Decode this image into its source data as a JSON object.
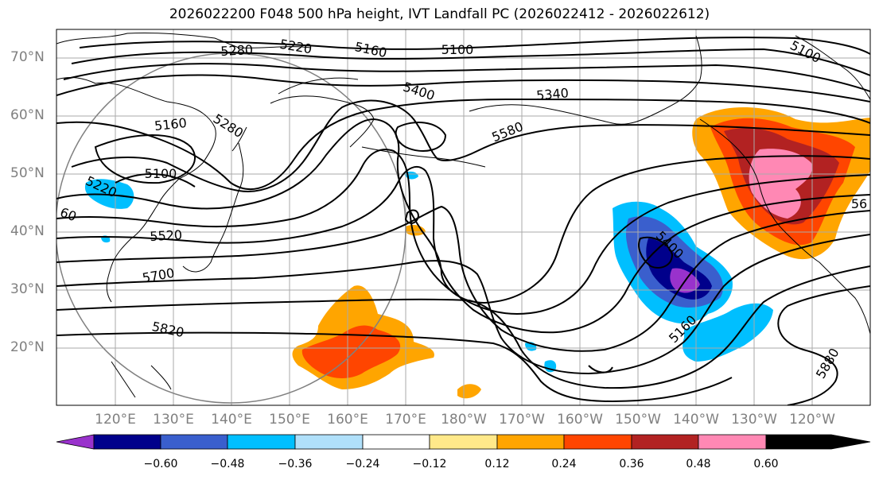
{
  "title": "2026022200 F048 500 hPa height, IVT Landfall PC (2026022412 - 2026022612)",
  "lat_labels": [
    "70°N",
    "60°N",
    "50°N",
    "40°N",
    "30°N",
    "20°N"
  ],
  "lon_labels": [
    "120°E",
    "130°E",
    "140°E",
    "150°E",
    "160°E",
    "170°E",
    "180°W",
    "170°W",
    "160°W",
    "150°W",
    "140°W",
    "130°W",
    "120°W"
  ],
  "contour_labels": [
    "5280",
    "5220",
    "5160",
    "5100",
    "5100",
    "5400",
    "5340",
    "5160",
    "5280",
    "5580",
    "5100",
    "5220",
    "60",
    "5520",
    "5700",
    "5820",
    "5400",
    "5160",
    "5880",
    "56"
  ],
  "colorbar": {
    "ticks": [
      "−0.60",
      "−0.48",
      "−0.36",
      "−0.24",
      "−0.12",
      "0.12",
      "0.24",
      "0.36",
      "0.48",
      "0.60"
    ],
    "colors": [
      "#9932cc",
      "#00008b",
      "#3a5fcd",
      "#00bfff",
      "#b0e0fa",
      "#ffffff",
      "#ffe98a",
      "#ffa500",
      "#ff4500",
      "#b22222",
      "#ff88b4"
    ]
  }
}
